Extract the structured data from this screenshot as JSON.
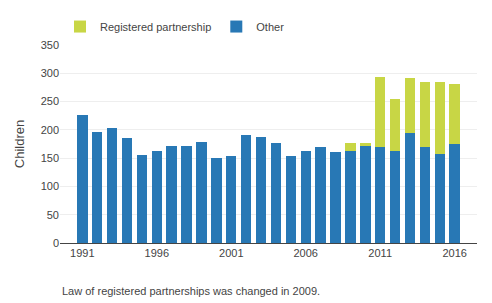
{
  "chart_data": {
    "type": "bar",
    "stacked": true,
    "x": [
      1991,
      1992,
      1993,
      1994,
      1995,
      1996,
      1997,
      1998,
      1999,
      2000,
      2001,
      2002,
      2003,
      2004,
      2005,
      2006,
      2007,
      2008,
      2009,
      2010,
      2011,
      2012,
      2013,
      2014,
      2015,
      2016
    ],
    "series": [
      {
        "name": "Other",
        "color": "#2878b5",
        "values": [
          227,
          196,
          204,
          186,
          156,
          162,
          171,
          171,
          179,
          150,
          153,
          191,
          188,
          176,
          153,
          162,
          170,
          161,
          162,
          171,
          169,
          163,
          194,
          169,
          157,
          175
        ]
      },
      {
        "name": "Registered partnership",
        "color": "#c8d645",
        "values": [
          0,
          0,
          0,
          0,
          0,
          0,
          0,
          0,
          0,
          0,
          0,
          0,
          0,
          0,
          0,
          0,
          0,
          0,
          15,
          6,
          125,
          91,
          97,
          115,
          127,
          106
        ]
      }
    ],
    "ylabel": "Children",
    "annotations": [
      "Law of registered partnerships was changed in 2009."
    ],
    "xlim": [
      1989.5,
      2017.5
    ],
    "xticks": [
      1991,
      1996,
      2001,
      2006,
      2011,
      2016
    ],
    "ylim": [
      0,
      350
    ],
    "yticks": [
      0,
      50,
      100,
      150,
      200,
      250,
      300,
      350
    ],
    "grid": true,
    "legend": "top"
  }
}
